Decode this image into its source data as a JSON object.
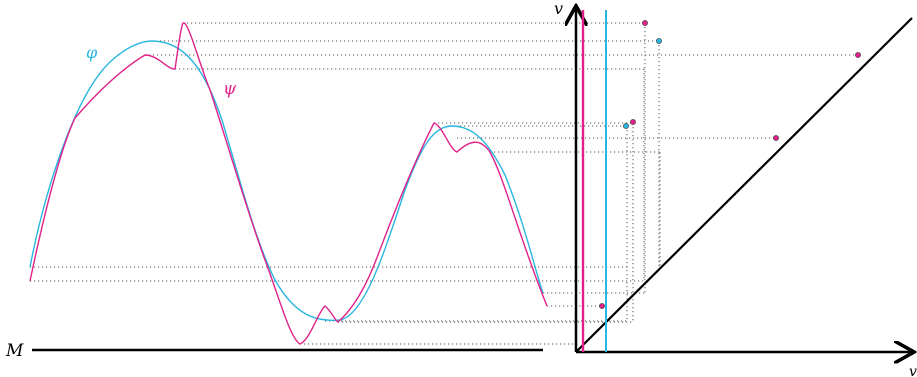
{
  "labels": {
    "base_space": "M",
    "first_function": "φ",
    "second_function": "ψ",
    "vertical_axis": "v",
    "horizontal_axis": "v"
  },
  "colors": {
    "first_function": "#29b6e0",
    "second_function": "#e0218a",
    "axes": "#000000",
    "guides": "#555555"
  }
}
